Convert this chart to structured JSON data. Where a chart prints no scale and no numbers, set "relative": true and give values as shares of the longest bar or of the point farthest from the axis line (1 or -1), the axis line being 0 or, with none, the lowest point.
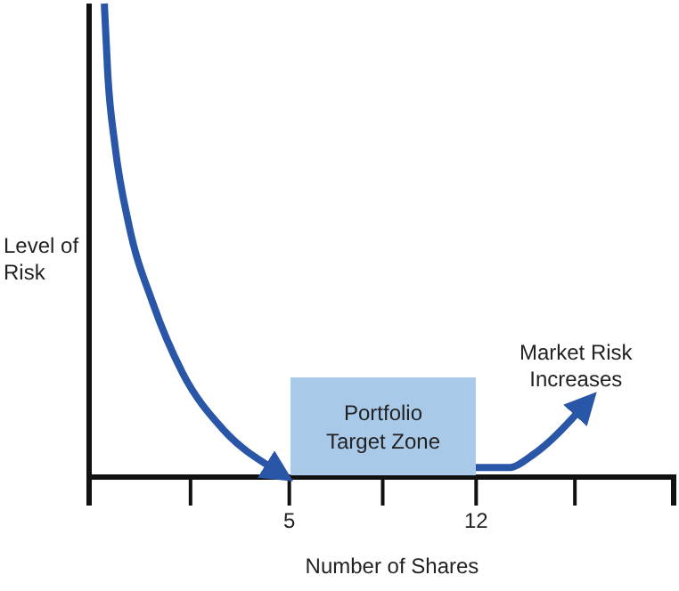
{
  "chart_data": {
    "type": "line",
    "xlabel": "Number of Shares",
    "ylabel": "Level of Risk",
    "relative": true,
    "xlim": [
      -2.5,
      19.4
    ],
    "xticks": [
      {
        "value": 1.3,
        "label": null
      },
      5,
      {
        "value": 8.5,
        "label": null
      },
      12,
      {
        "value": 15.7,
        "label": null
      }
    ],
    "series": [
      {
        "color": "#2a56a8",
        "x": [
          -1.93,
          -1.8,
          -1.53,
          -1,
          -0.13,
          1,
          2.53,
          4.33
        ],
        "values": [
          1,
          0.85,
          0.7,
          0.53,
          0.37,
          0.22,
          0.1,
          0.02
        ]
      },
      {
        "color": "#2a56a8",
        "x": [
          11.9,
          13.2,
          14.2,
          15.87
        ],
        "values": [
          0.02,
          0.02,
          0.05,
          0.14
        ]
      }
    ],
    "annotations": [
      "Portfolio Target Zone",
      {
        "text": "Market Risk Increases",
        "x": 15.87,
        "y": 0.14
      }
    ],
    "grid": false,
    "marker": "none",
    "line_style": "solid",
    "tick_labels": "x"
  }
}
